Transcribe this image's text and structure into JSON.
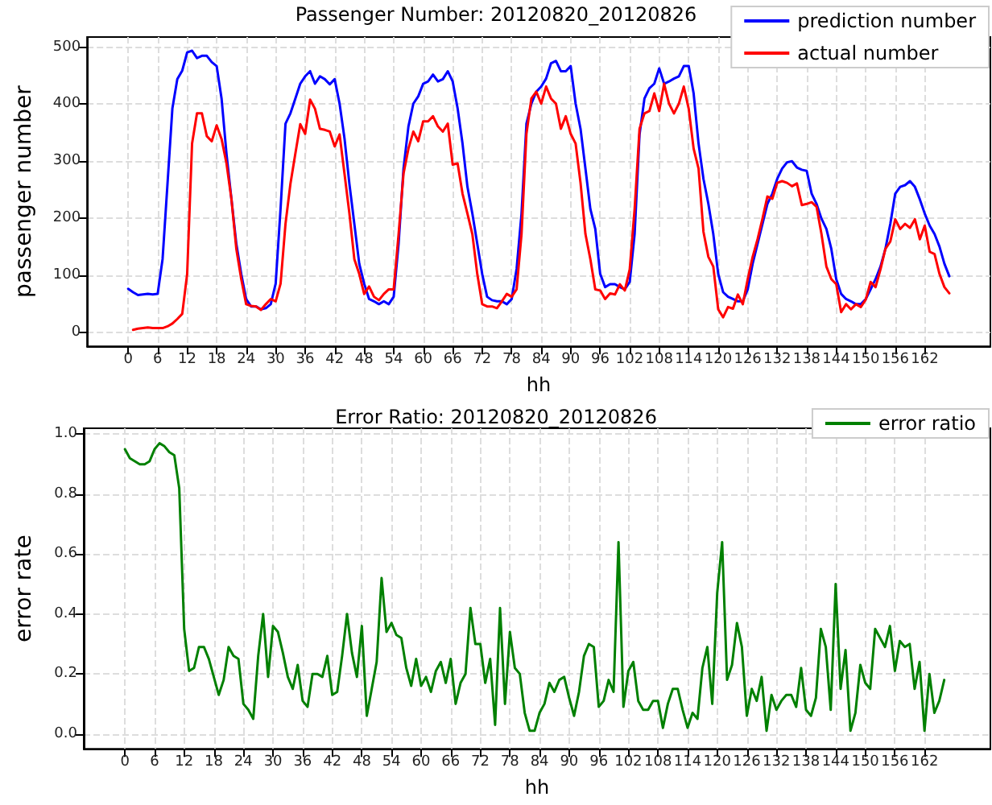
{
  "chart_data": [
    {
      "type": "line",
      "title": "Passenger Number: 20120820_20120826",
      "xlabel": "hh",
      "ylabel": "passenger number",
      "x": [
        0,
        1,
        2,
        3,
        4,
        5,
        6,
        7,
        8,
        9,
        10,
        11,
        12,
        13,
        14,
        15,
        16,
        17,
        18,
        19,
        20,
        21,
        22,
        23,
        24,
        25,
        26,
        27,
        28,
        29,
        30,
        31,
        32,
        33,
        34,
        35,
        36,
        37,
        38,
        39,
        40,
        41,
        42,
        43,
        44,
        45,
        46,
        47,
        48,
        49,
        50,
        51,
        52,
        53,
        54,
        55,
        56,
        57,
        58,
        59,
        60,
        61,
        62,
        63,
        64,
        65,
        66,
        67,
        68,
        69,
        70,
        71,
        72,
        73,
        74,
        75,
        76,
        77,
        78,
        79,
        80,
        81,
        82,
        83,
        84,
        85,
        86,
        87,
        88,
        89,
        90,
        91,
        92,
        93,
        94,
        95,
        96,
        97,
        98,
        99,
        100,
        101,
        102,
        103,
        104,
        105,
        106,
        107,
        108,
        109,
        110,
        111,
        112,
        113,
        114,
        115,
        116,
        117,
        118,
        119,
        120,
        121,
        122,
        123,
        124,
        125,
        126,
        127,
        128,
        129,
        130,
        131,
        132,
        133,
        134,
        135,
        136,
        137,
        138,
        139,
        140,
        141,
        142,
        143,
        144,
        145,
        146,
        147,
        148,
        149,
        150,
        151,
        152,
        153,
        154,
        155,
        156,
        157,
        158,
        159,
        160,
        161,
        162,
        163,
        164,
        165,
        166,
        167
      ],
      "series": [
        {
          "name": "prediction number",
          "color": "#0000ff",
          "values": [
            76,
            70,
            65,
            66,
            67,
            66,
            67,
            128,
            260,
            393,
            444,
            459,
            491,
            494,
            481,
            485,
            485,
            474,
            467,
            410,
            313,
            234,
            155,
            102,
            58,
            45,
            45,
            40,
            42,
            49,
            85,
            217,
            366,
            384,
            410,
            436,
            449,
            458,
            436,
            449,
            444,
            435,
            444,
            401,
            340,
            260,
            190,
            120,
            85,
            58,
            54,
            49,
            54,
            49,
            62,
            155,
            287,
            361,
            401,
            414,
            436,
            440,
            452,
            440,
            444,
            458,
            440,
            393,
            331,
            255,
            208,
            155,
            102,
            62,
            56,
            54,
            54,
            49,
            58,
            111,
            208,
            366,
            401,
            422,
            431,
            445,
            472,
            476,
            458,
            458,
            467,
            401,
            357,
            287,
            216,
            181,
            102,
            79,
            84,
            84,
            79,
            75,
            88,
            172,
            347,
            410,
            428,
            436,
            463,
            436,
            440,
            445,
            449,
            467,
            467,
            419,
            331,
            269,
            225,
            172,
            102,
            70,
            62,
            58,
            54,
            54,
            75,
            120,
            155,
            190,
            225,
            243,
            269,
            287,
            298,
            300,
            289,
            285,
            283,
            243,
            225,
            199,
            181,
            146,
            93,
            67,
            58,
            54,
            49,
            49,
            58,
            75,
            93,
            115,
            146,
            190,
            243,
            255,
            258,
            265,
            255,
            233,
            208,
            187,
            172,
            150,
            120,
            98
          ]
        },
        {
          "name": "actual number",
          "color": "#ff0000",
          "values": [
            null,
            4,
            6,
            7,
            8,
            7,
            7,
            7,
            10,
            15,
            23,
            32,
            102,
            331,
            384,
            384,
            344,
            335,
            363,
            339,
            296,
            234,
            146,
            93,
            49,
            46,
            45,
            39,
            49,
            58,
            54,
            85,
            190,
            260,
            313,
            365,
            348,
            408,
            392,
            357,
            355,
            352,
            326,
            347,
            278,
            208,
            128,
            102,
            67,
            80,
            62,
            56,
            67,
            75,
            75,
            172,
            278,
            322,
            352,
            335,
            370,
            370,
            379,
            361,
            352,
            366,
            294,
            296,
            243,
            208,
            172,
            102,
            49,
            45,
            45,
            42,
            54,
            67,
            62,
            75,
            172,
            348,
            410,
            422,
            401,
            431,
            410,
            401,
            357,
            379,
            348,
            331,
            262,
            172,
            128,
            75,
            73,
            58,
            68,
            66,
            84,
            73,
            110,
            216,
            357,
            384,
            388,
            419,
            388,
            436,
            401,
            384,
            401,
            431,
            392,
            322,
            287,
            176,
            132,
            115,
            40,
            26,
            44,
            41,
            66,
            49,
            93,
            132,
            163,
            199,
            238,
            234,
            262,
            265,
            262,
            256,
            261,
            223,
            225,
            228,
            220,
            172,
            115,
            93,
            84,
            35,
            49,
            40,
            49,
            44,
            57,
            88,
            79,
            110,
            146,
            159,
            198,
            181,
            190,
            183,
            198,
            163,
            187,
            141,
            137,
            102,
            79,
            68
          ]
        }
      ],
      "xlim": [
        -8.35,
        175.35
      ],
      "xticks": [
        0,
        6,
        12,
        18,
        24,
        30,
        36,
        42,
        48,
        54,
        60,
        66,
        72,
        78,
        84,
        90,
        96,
        102,
        108,
        114,
        120,
        126,
        132,
        138,
        144,
        150,
        156,
        162
      ],
      "ylim": [
        -25,
        518
      ],
      "yticks": [
        0,
        100,
        200,
        300,
        400,
        500
      ],
      "grid": true,
      "legend": "top right",
      "marker": "none",
      "line_style": "solid"
    },
    {
      "type": "line",
      "title": "Error Ratio: 20120820_20120826",
      "xlabel": "hh",
      "ylabel": "error rate",
      "x": [
        0,
        1,
        2,
        3,
        4,
        5,
        6,
        7,
        8,
        9,
        10,
        11,
        12,
        13,
        14,
        15,
        16,
        17,
        18,
        19,
        20,
        21,
        22,
        23,
        24,
        25,
        26,
        27,
        28,
        29,
        30,
        31,
        32,
        33,
        34,
        35,
        36,
        37,
        38,
        39,
        40,
        41,
        42,
        43,
        44,
        45,
        46,
        47,
        48,
        49,
        50,
        51,
        52,
        53,
        54,
        55,
        56,
        57,
        58,
        59,
        60,
        61,
        62,
        63,
        64,
        65,
        66,
        67,
        68,
        69,
        70,
        71,
        72,
        73,
        74,
        75,
        76,
        77,
        78,
        79,
        80,
        81,
        82,
        83,
        84,
        85,
        86,
        87,
        88,
        89,
        90,
        91,
        92,
        93,
        94,
        95,
        96,
        97,
        98,
        99,
        100,
        101,
        102,
        103,
        104,
        105,
        106,
        107,
        108,
        109,
        110,
        111,
        112,
        113,
        114,
        115,
        116,
        117,
        118,
        119,
        120,
        121,
        122,
        123,
        124,
        125,
        126,
        127,
        128,
        129,
        130,
        131,
        132,
        133,
        134,
        135,
        136,
        137,
        138,
        139,
        140,
        141,
        142,
        143,
        144,
        145,
        146,
        147,
        148,
        149,
        150,
        151,
        152,
        153,
        154,
        155,
        156,
        157,
        158,
        159,
        160,
        161,
        162,
        163,
        164,
        165,
        166
      ],
      "series": [
        {
          "name": "error ratio",
          "color": "#008000",
          "values": [
            0.95,
            0.92,
            0.91,
            0.9,
            0.9,
            0.91,
            0.95,
            0.97,
            0.96,
            0.94,
            0.93,
            0.82,
            0.35,
            0.21,
            0.22,
            0.29,
            0.29,
            0.25,
            0.19,
            0.13,
            0.18,
            0.29,
            0.26,
            0.25,
            0.1,
            0.08,
            0.05,
            0.26,
            0.4,
            0.19,
            0.36,
            0.34,
            0.27,
            0.19,
            0.15,
            0.23,
            0.11,
            0.09,
            0.2,
            0.2,
            0.19,
            0.26,
            0.13,
            0.14,
            0.26,
            0.4,
            0.27,
            0.19,
            0.36,
            0.06,
            0.15,
            0.24,
            0.52,
            0.34,
            0.37,
            0.33,
            0.32,
            0.22,
            0.16,
            0.25,
            0.16,
            0.19,
            0.14,
            0.21,
            0.24,
            0.17,
            0.25,
            0.1,
            0.17,
            0.2,
            0.42,
            0.3,
            0.3,
            0.17,
            0.25,
            0.03,
            0.42,
            0.1,
            0.34,
            0.22,
            0.2,
            0.07,
            0.01,
            0.01,
            0.07,
            0.1,
            0.17,
            0.14,
            0.18,
            0.19,
            0.12,
            0.06,
            0.14,
            0.26,
            0.3,
            0.29,
            0.09,
            0.11,
            0.18,
            0.14,
            0.64,
            0.09,
            0.21,
            0.24,
            0.11,
            0.08,
            0.08,
            0.11,
            0.11,
            0.02,
            0.1,
            0.15,
            0.15,
            0.08,
            0.02,
            0.07,
            0.05,
            0.22,
            0.29,
            0.1,
            0.47,
            0.64,
            0.18,
            0.23,
            0.37,
            0.29,
            0.06,
            0.15,
            0.11,
            0.19,
            0.01,
            0.13,
            0.08,
            0.11,
            0.13,
            0.13,
            0.09,
            0.22,
            0.08,
            0.06,
            0.12,
            0.35,
            0.29,
            0.08,
            0.5,
            0.15,
            0.28,
            0.01,
            0.07,
            0.23,
            0.17,
            0.15,
            0.35,
            0.32,
            0.29,
            0.36,
            0.21,
            0.31,
            0.29,
            0.3,
            0.15,
            0.24,
            0.01,
            0.2,
            0.07,
            0.11,
            0.18
          ]
        }
      ],
      "xlim": [
        -8.35,
        175.35
      ],
      "xticks": [
        0,
        6,
        12,
        18,
        24,
        30,
        36,
        42,
        48,
        54,
        60,
        66,
        72,
        78,
        84,
        90,
        96,
        102,
        108,
        114,
        120,
        126,
        132,
        138,
        144,
        150,
        156,
        162
      ],
      "ylim": [
        -0.05,
        1.02
      ],
      "yticks": [
        {
          "value": 0,
          "label": "0.0"
        },
        0.2,
        0.4,
        0.6,
        0.8,
        {
          "value": 1,
          "label": "1.0"
        }
      ],
      "grid": true,
      "legend": "top right",
      "marker": "none",
      "line_style": "solid"
    }
  ]
}
